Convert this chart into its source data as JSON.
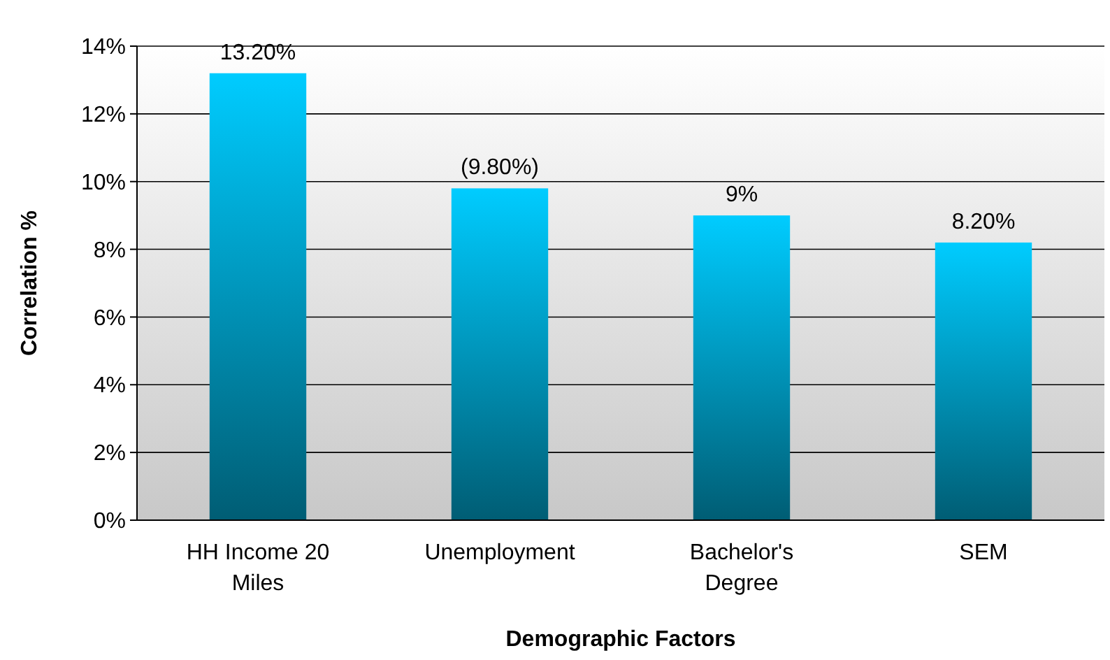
{
  "chart_data": {
    "type": "bar",
    "xlabel": "Demographic Factors",
    "ylabel": "Correlation %",
    "categories": [
      "HH Income 20 Miles",
      "Unemployment",
      "Bachelor's Degree",
      "SEM"
    ],
    "values": [
      13.2,
      9.8,
      9,
      8.2
    ],
    "value_labels": [
      "13.20%",
      "(9.80%)",
      "9%",
      "8.20%"
    ],
    "color": "#00ccff",
    "ylim": [
      0,
      14
    ],
    "yticks": [
      {
        "value": 0,
        "label": "0%"
      },
      {
        "value": 2,
        "label": "2%"
      },
      {
        "value": 4,
        "label": "4%"
      },
      {
        "value": 6,
        "label": "6%"
      },
      {
        "value": 8,
        "label": "8%"
      },
      {
        "value": 10,
        "label": "10%"
      },
      {
        "value": 12,
        "label": "12%"
      },
      {
        "value": 14,
        "label": "14%"
      }
    ],
    "grid": "y"
  }
}
